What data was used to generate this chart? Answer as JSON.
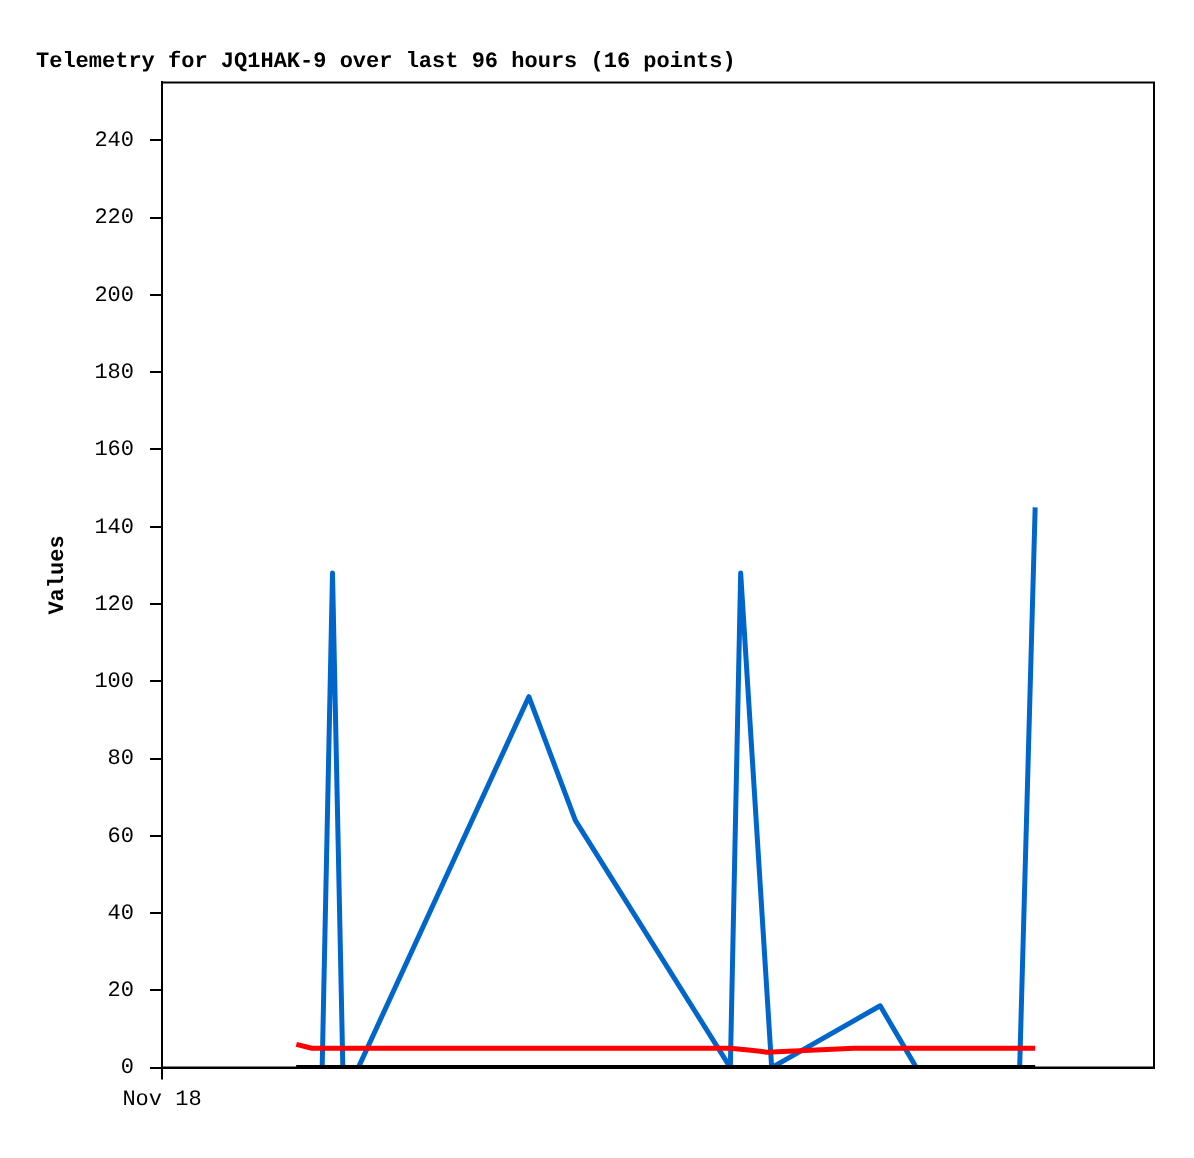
{
  "chart_data": {
    "type": "line",
    "title": "Telemetry for JQ1HAK-9 over last 96 hours (16 points)",
    "ylabel": "Values",
    "categories": [
      "Nov 18",
      null,
      null,
      null,
      null,
      null,
      null,
      null,
      null,
      null,
      null,
      null,
      null,
      null,
      null,
      null,
      null,
      null,
      null,
      null,
      null,
      null,
      null,
      null,
      null,
      null,
      null,
      null,
      null,
      null,
      null,
      null,
      null,
      null,
      null,
      null,
      null,
      null,
      null,
      null,
      null,
      null,
      null,
      null,
      null,
      null,
      null,
      null,
      null,
      null,
      null,
      null,
      null,
      null,
      null,
      null,
      null,
      null,
      null,
      null,
      null,
      null,
      null,
      null,
      null,
      null,
      null,
      null,
      null,
      null,
      null,
      null,
      null,
      null,
      null,
      null,
      null,
      null,
      null,
      null,
      null,
      null,
      null,
      null,
      null,
      null,
      null,
      null,
      null,
      null,
      null,
      null,
      null,
      null,
      null,
      null,
      null,
      null,
      null,
      null,
      null,
      null,
      null,
      null,
      null,
      null,
      null,
      null,
      null,
      null,
      null,
      null,
      null,
      null,
      null,
      null,
      null,
      null,
      null,
      null,
      null,
      null,
      null,
      null,
      null,
      null,
      null,
      null,
      null,
      null,
      null,
      null,
      null,
      null,
      null,
      null,
      null,
      null,
      null,
      null,
      null,
      null,
      null,
      null,
      null,
      null,
      null,
      null,
      null,
      null,
      null,
      null,
      null,
      null,
      null,
      null,
      null,
      null,
      null,
      null,
      null,
      null,
      null,
      null,
      null,
      null,
      null,
      null,
      null,
      null,
      null,
      null,
      null,
      null,
      null,
      null,
      null,
      null,
      null,
      null,
      null,
      null,
      null,
      null,
      null,
      null,
      null,
      null,
      null,
      null,
      null,
      null,
      null
    ],
    "ylim": [
      0,
      255
    ],
    "yticks": [
      0,
      20,
      40,
      60,
      80,
      100,
      120,
      140,
      160,
      180,
      200,
      220,
      240
    ],
    "grid": false,
    "legend": false,
    "marker": "none",
    "line_style": "solid",
    "series": [
      {
        "color": "#000000",
        "values": [
          null,
          null,
          null,
          null,
          null,
          null,
          null,
          null,
          null,
          null,
          null,
          null,
          null,
          null,
          null,
          null,
          null,
          null,
          null,
          null,
          null,
          null,
          null,
          null,
          null,
          null,
          0,
          null,
          null,
          null,
          null,
          null,
          null,
          null,
          null,
          null,
          null,
          null,
          null,
          null,
          null,
          null,
          null,
          null,
          null,
          null,
          null,
          null,
          null,
          null,
          null,
          null,
          null,
          null,
          null,
          null,
          null,
          null,
          null,
          null,
          null,
          null,
          null,
          null,
          null,
          null,
          null,
          null,
          null,
          null,
          null,
          null,
          null,
          null,
          null,
          null,
          null,
          null,
          null,
          null,
          null,
          null,
          null,
          null,
          null,
          null,
          null,
          null,
          null,
          null,
          null,
          null,
          null,
          null,
          null,
          null,
          null,
          null,
          null,
          null,
          null,
          null,
          null,
          null,
          null,
          null,
          null,
          null,
          null,
          null,
          null,
          null,
          null,
          null,
          null,
          null,
          null,
          null,
          null,
          null,
          null,
          null,
          null,
          null,
          null,
          null,
          null,
          null,
          null,
          null,
          null,
          null,
          null,
          null,
          null,
          null,
          null,
          null,
          null,
          null,
          null,
          null,
          null,
          null,
          null,
          null,
          null,
          null,
          null,
          null,
          null,
          null,
          null,
          null,
          null,
          null,
          null,
          null,
          null,
          null,
          null,
          null,
          null,
          null,
          null,
          null,
          null,
          null,
          null,
          0,
          null,
          null,
          null,
          null,
          null,
          null,
          null,
          null,
          null,
          null,
          null,
          null,
          null,
          null,
          null,
          null,
          null,
          null,
          null,
          null,
          null,
          null,
          null
        ]
      },
      {
        "color": "#ff0000",
        "values": [
          null,
          null,
          null,
          null,
          null,
          null,
          null,
          null,
          null,
          null,
          null,
          null,
          null,
          null,
          null,
          null,
          null,
          null,
          null,
          null,
          null,
          null,
          null,
          null,
          null,
          null,
          6,
          null,
          null,
          5,
          null,
          null,
          null,
          null,
          null,
          null,
          null,
          null,
          null,
          null,
          null,
          null,
          null,
          null,
          null,
          null,
          null,
          null,
          null,
          null,
          null,
          null,
          null,
          null,
          null,
          null,
          null,
          null,
          null,
          null,
          null,
          null,
          null,
          null,
          null,
          null,
          null,
          null,
          null,
          null,
          null,
          null,
          null,
          null,
          null,
          null,
          null,
          null,
          null,
          null,
          null,
          null,
          null,
          null,
          null,
          null,
          null,
          null,
          null,
          null,
          null,
          null,
          null,
          null,
          null,
          null,
          null,
          null,
          null,
          null,
          null,
          null,
          null,
          null,
          null,
          null,
          null,
          null,
          null,
          null,
          5,
          null,
          null,
          null,
          4.5,
          null,
          null,
          4,
          null,
          null,
          null,
          null,
          null,
          null,
          null,
          null,
          null,
          null,
          null,
          null,
          null,
          null,
          null,
          null,
          5,
          null,
          null,
          null,
          null,
          null,
          null,
          null,
          null,
          null,
          null,
          null,
          null,
          null,
          null,
          null,
          null,
          null,
          null,
          null,
          null,
          null,
          null,
          null,
          null,
          null,
          null,
          null,
          null,
          null,
          null,
          null,
          null,
          null,
          null,
          5,
          null,
          null,
          null,
          null,
          null,
          null,
          null,
          null,
          null,
          null,
          null,
          null,
          null,
          null,
          null,
          null,
          null,
          null,
          null,
          null,
          null,
          null,
          null
        ]
      },
      {
        "color": "#0066cc",
        "values": [
          null,
          null,
          null,
          null,
          null,
          null,
          null,
          null,
          null,
          null,
          null,
          null,
          null,
          null,
          null,
          null,
          null,
          null,
          null,
          null,
          null,
          null,
          null,
          null,
          null,
          null,
          0,
          null,
          null,
          null,
          null,
          0,
          null,
          128,
          null,
          0,
          null,
          null,
          0,
          null,
          null,
          null,
          null,
          null,
          null,
          null,
          null,
          null,
          null,
          null,
          null,
          null,
          null,
          null,
          null,
          null,
          null,
          null,
          null,
          null,
          null,
          null,
          null,
          null,
          null,
          null,
          null,
          null,
          null,
          null,
          null,
          96,
          null,
          null,
          null,
          null,
          null,
          null,
          null,
          null,
          64,
          null,
          null,
          null,
          null,
          null,
          null,
          null,
          null,
          null,
          null,
          null,
          null,
          null,
          null,
          null,
          null,
          null,
          null,
          null,
          null,
          null,
          null,
          null,
          null,
          null,
          null,
          null,
          null,
          null,
          0,
          null,
          128,
          null,
          null,
          null,
          null,
          null,
          0,
          null,
          null,
          null,
          null,
          null,
          null,
          null,
          null,
          null,
          null,
          null,
          null,
          null,
          null,
          null,
          null,
          null,
          null,
          null,
          null,
          16,
          null,
          null,
          null,
          null,
          null,
          null,
          0,
          null,
          null,
          null,
          null,
          null,
          null,
          null,
          null,
          null,
          null,
          null,
          null,
          null,
          null,
          null,
          null,
          null,
          null,
          null,
          0,
          null,
          null,
          145,
          null,
          null,
          null,
          null,
          null,
          null,
          null,
          null,
          null,
          null,
          null,
          null,
          null,
          null,
          null,
          null,
          null,
          null,
          null,
          null,
          null,
          null,
          null
        ]
      }
    ]
  }
}
